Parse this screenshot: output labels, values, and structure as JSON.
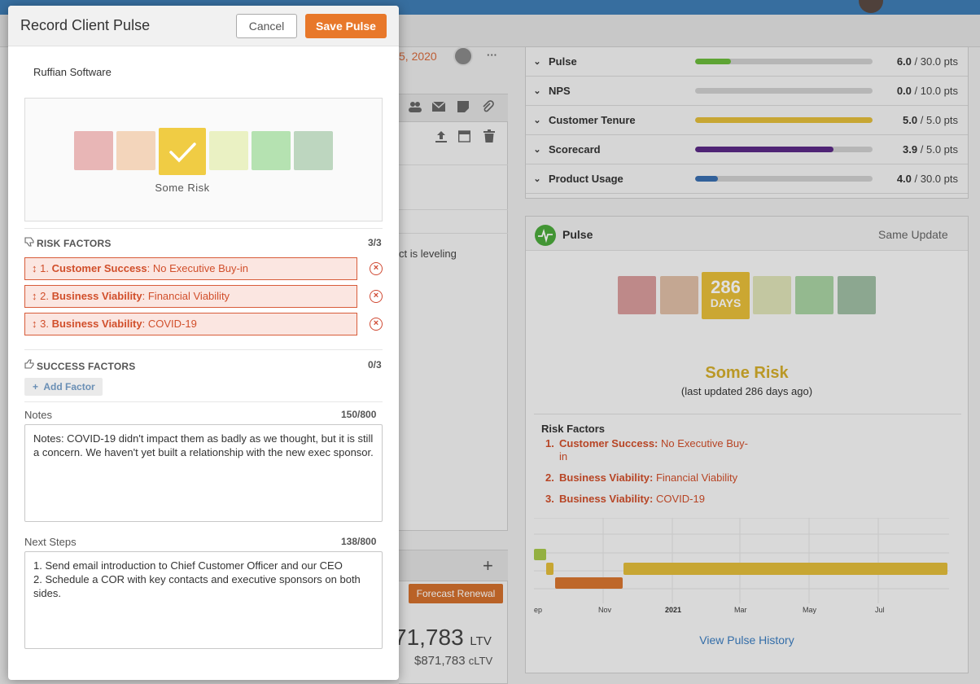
{
  "modal": {
    "title": "Record Client Pulse",
    "cancel_label": "Cancel",
    "save_label": "Save Pulse",
    "client_name": "Ruffian Software",
    "selected_level": "Some Risk",
    "risk_factors": {
      "heading": "RISK FACTORS",
      "count": "3/3",
      "items": [
        {
          "num": "1.",
          "category": "Customer Success",
          "sep": ":",
          "detail": " No Executive Buy-in"
        },
        {
          "num": "2.",
          "category": "Business Viability",
          "sep": ":",
          "detail": " Financial Viability"
        },
        {
          "num": "3.",
          "category": "Business Viability",
          "sep": ":",
          "detail": " COVID-19"
        }
      ]
    },
    "success_factors": {
      "heading": "SUCCESS FACTORS",
      "count": "0/3",
      "add_label": "Add Factor"
    },
    "notes": {
      "label": "Notes",
      "count": "150/800",
      "value": "Notes: COVID-19 didn't impact them as badly as we thought, but it is still a concern. We haven't yet built a relationship with the new exec sponsor."
    },
    "next_steps": {
      "label": "Next Steps",
      "count": "138/800",
      "value": "1. Send email introduction to Chief Customer Officer and our CEO\n2. Schedule a COR with key contacts and executive sponsors on both sides."
    }
  },
  "background": {
    "date_fragment": "5, 2020",
    "more_label": "···",
    "text_fragment": "ct is leveling",
    "forecast_label": "Forecast Renewal",
    "ltv_value": "71,783",
    "ltv_unit": "LTV",
    "cltv_value": "$871,783",
    "cltv_unit": "cLTV",
    "scores": [
      {
        "name": "Pulse",
        "value": "6.0",
        "max": "/ 30.0 pts",
        "fraction": 0.2,
        "color": "#6cbb3c"
      },
      {
        "name": "NPS",
        "value": "0.0",
        "max": "/ 10.0 pts",
        "fraction": 0.0,
        "color": "#999999"
      },
      {
        "name": "Customer Tenure",
        "value": "5.0",
        "max": "/  5.0 pts",
        "fraction": 1.0,
        "color": "#e3be3b"
      },
      {
        "name": "Scorecard",
        "value": "3.9",
        "max": "/  5.0 pts",
        "fraction": 0.78,
        "color": "#5b2a86"
      },
      {
        "name": "Product Usage",
        "value": "4.0",
        "max": "/ 30.0 pts",
        "fraction": 0.13,
        "color": "#3a6fb0"
      }
    ],
    "pulse_card": {
      "title": "Pulse",
      "update_label": "Same Update",
      "days_number": "286",
      "days_label": "DAYS",
      "status": "Some Risk",
      "last_updated": "(last updated 286 days ago)",
      "risk_heading": "Risk Factors",
      "risks": [
        {
          "num": "1.",
          "category": "Customer Success:",
          "detail": " No Executive Buy-",
          "detail2": "in"
        },
        {
          "num": "2.",
          "category": "Business Viability:",
          "detail": " Financial Viability"
        },
        {
          "num": "3.",
          "category": "Business Viability:",
          "detail": " COVID-19"
        }
      ],
      "timeline_ticks": [
        "ep",
        "Nov",
        "2021",
        "Mar",
        "May",
        "Jul"
      ],
      "history_link": "View Pulse History"
    }
  },
  "colors": {
    "accent": "#e8782a",
    "risk_red": "#d14f2b",
    "selected": "#f0cc44"
  }
}
